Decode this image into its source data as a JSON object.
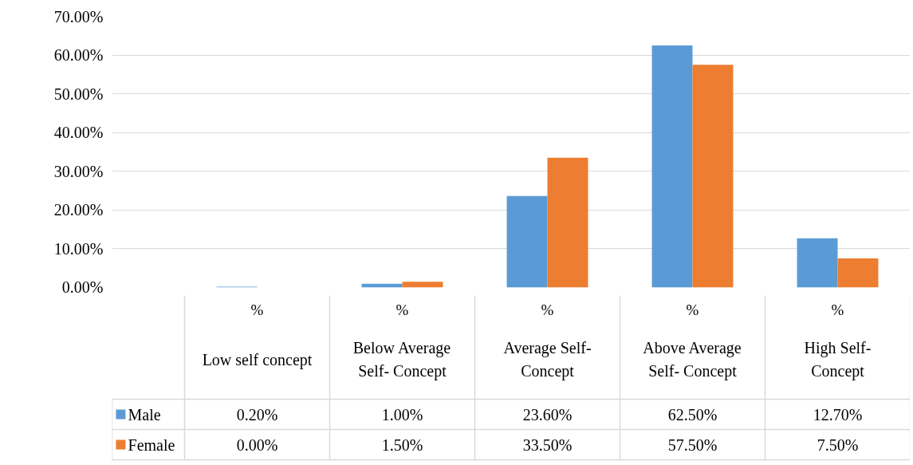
{
  "chart_data": {
    "type": "bar",
    "categories": [
      "%\nLow self concept",
      "%\nBelow Average Self- Concept",
      "%\nAverage Self- Concept",
      "%\nAbove Average Self- Concept",
      "%\nHigh Self- Concept"
    ],
    "series": [
      {
        "name": "Male",
        "color": "#5b9bd5",
        "values": [
          0.2,
          1.0,
          23.6,
          62.5,
          12.7
        ],
        "value_labels": [
          "0.20%",
          "1.00%",
          "23.60%",
          "62.50%",
          "12.70%"
        ]
      },
      {
        "name": "Female",
        "color": "#ed7d31",
        "values": [
          0.0,
          1.5,
          33.5,
          57.5,
          7.5
        ],
        "value_labels": [
          "0.00%",
          "1.50%",
          "33.50%",
          "57.50%",
          "7.50%"
        ]
      }
    ],
    "ylim": [
      0,
      70
    ],
    "yticks": [
      {
        "value": 0,
        "label": "0.00%"
      },
      {
        "value": 10,
        "label": "10.00%"
      },
      {
        "value": 20,
        "label": "20.00%"
      },
      {
        "value": 30,
        "label": "30.00%"
      },
      {
        "value": 40,
        "label": "40.00%"
      },
      {
        "value": 50,
        "label": "50.00%"
      },
      {
        "value": 60,
        "label": "60.00%"
      },
      {
        "value": 70,
        "label": "70.00%"
      }
    ],
    "grid": "y",
    "legend": "bottom"
  }
}
